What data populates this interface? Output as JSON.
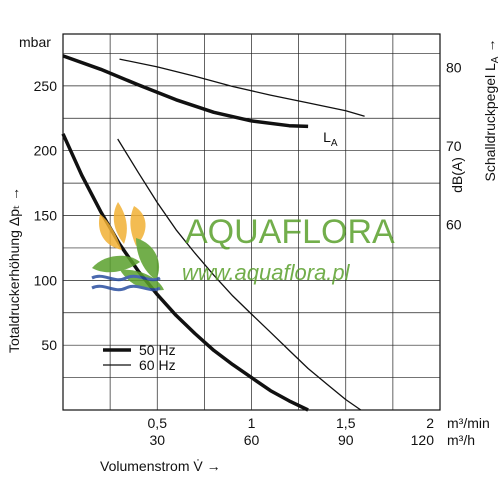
{
  "chart_data": {
    "type": "line",
    "y_left": {
      "unit": "mbar",
      "title": "Totaldruckerhöhung Δpₜ →",
      "ticks": [
        50,
        100,
        150,
        200,
        250
      ],
      "range": [
        0,
        290
      ]
    },
    "y_right": {
      "unit": "dB(A)",
      "title": "Schalldruckpegel L",
      "title_sub": "A",
      "title_arrow": "→",
      "ticks": [
        60,
        70,
        80
      ],
      "range": [
        36.3,
        84.3
      ]
    },
    "x": {
      "title": "Volumenstrom V̇ →",
      "range": [
        0,
        2
      ],
      "ticks_m3min": [
        "0,5",
        "1",
        "1,5",
        "2"
      ],
      "ticks_m3min_values": [
        0.5,
        1,
        1.5,
        2
      ],
      "ticks_m3h": [
        "30",
        "60",
        "90",
        "120"
      ],
      "unit_m3min": "m³/min",
      "unit_m3h": "m³/h"
    },
    "series": [
      {
        "name": "50 Hz",
        "axis": "left",
        "style": "thick",
        "x": [
          0,
          0.1,
          0.2,
          0.3,
          0.4,
          0.5,
          0.6,
          0.7,
          0.8,
          0.9,
          1.0,
          1.1,
          1.2,
          1.3
        ],
        "y": [
          213,
          181,
          153,
          128,
          107,
          89,
          73,
          59,
          46,
          35,
          25,
          15,
          7,
          0
        ]
      },
      {
        "name": "60 Hz",
        "axis": "left",
        "style": "thin",
        "x": [
          0.29,
          0.4,
          0.5,
          0.6,
          0.7,
          0.8,
          0.9,
          1.0,
          1.1,
          1.2,
          1.3,
          1.4,
          1.5,
          1.58
        ],
        "y": [
          209,
          183,
          160,
          139,
          121,
          104,
          88,
          74,
          60,
          46,
          32,
          20,
          8,
          0
        ]
      },
      {
        "name": "50 Hz",
        "axis": "right",
        "style": "thick",
        "x": [
          0,
          0.2,
          0.4,
          0.6,
          0.8,
          1.0,
          1.2,
          1.3
        ],
        "y": [
          81.5,
          79.8,
          77.8,
          75.9,
          74.3,
          73.2,
          72.6,
          72.5
        ]
      },
      {
        "name": "60 Hz",
        "axis": "right",
        "style": "thin",
        "x": [
          0.3,
          0.5,
          0.7,
          0.9,
          1.1,
          1.3,
          1.5,
          1.6
        ],
        "y": [
          81.1,
          80.1,
          78.9,
          77.6,
          76.5,
          75.5,
          74.5,
          73.8
        ]
      }
    ],
    "annotation": {
      "text": "L",
      "sub": "A",
      "x": 1.38,
      "y_db": 70.5
    },
    "legend": {
      "placement": "bottom-left",
      "items": [
        {
          "label": "50 Hz",
          "style": "thick"
        },
        {
          "label": "60 Hz",
          "style": "thin"
        }
      ]
    },
    "grid": true
  },
  "watermark": {
    "brand": "AQUAFLORA",
    "url": "www.aquaflora.pl",
    "colors": {
      "green": "#5aa02c",
      "yellow": "#f2b134",
      "blue": "#2b4fa0"
    }
  }
}
